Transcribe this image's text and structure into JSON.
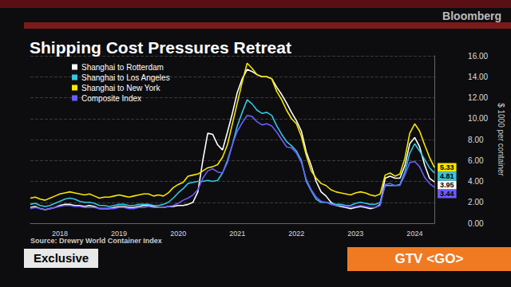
{
  "chart_data": {
    "type": "line",
    "title": "Shipping Cost Pressures Retreat",
    "ylabel": "$ 1000 per container",
    "source": "Source: Drewry World Container Index",
    "annotations": [
      "Bloomberg",
      "Exclusive",
      "GTV <GO>"
    ],
    "categories": [
      null,
      null,
      null,
      null,
      null,
      null,
      "2018",
      null,
      null,
      null,
      null,
      null,
      null,
      null,
      null,
      null,
      null,
      null,
      "2019",
      null,
      null,
      null,
      null,
      null,
      null,
      null,
      null,
      null,
      null,
      null,
      "2020",
      null,
      null,
      null,
      null,
      null,
      null,
      null,
      null,
      null,
      null,
      null,
      "2021",
      null,
      null,
      null,
      null,
      null,
      null,
      null,
      null,
      null,
      null,
      null,
      "2022",
      null,
      null,
      null,
      null,
      null,
      null,
      null,
      null,
      null,
      null,
      null,
      "2023",
      null,
      null,
      null,
      null,
      null,
      null,
      null,
      null,
      null,
      null,
      null,
      "2024",
      null,
      null,
      null,
      null
    ],
    "series": [
      {
        "name": "Shanghai to Rotterdam",
        "color": "#ffffff",
        "values": [
          1.5,
          1.6,
          1.4,
          1.3,
          1.4,
          1.5,
          1.7,
          1.8,
          1.8,
          1.7,
          1.7,
          1.6,
          1.7,
          1.6,
          1.4,
          1.4,
          1.4,
          1.5,
          1.6,
          1.6,
          1.5,
          1.5,
          1.6,
          1.7,
          1.7,
          1.6,
          1.5,
          1.5,
          1.6,
          1.6,
          1.7,
          1.7,
          1.8,
          2.0,
          3.0,
          6.0,
          8.6,
          8.5,
          7.5,
          7.0,
          8.7,
          10.5,
          12.5,
          13.8,
          14.7,
          14.5,
          14.2,
          14.0,
          14.0,
          13.8,
          13.0,
          12.3,
          11.5,
          10.6,
          9.8,
          8.8,
          6.8,
          5.5,
          4.0,
          3.0,
          2.6,
          2.0,
          1.7,
          1.6,
          1.5,
          1.4,
          1.5,
          1.6,
          1.5,
          1.4,
          1.5,
          1.8,
          4.3,
          4.5,
          4.3,
          4.3,
          5.5,
          7.6,
          8.2,
          7.3,
          5.6,
          4.3,
          3.95
        ]
      },
      {
        "name": "Shanghai to Los Angeles",
        "color": "#33c6e0",
        "values": [
          1.8,
          1.9,
          1.7,
          1.6,
          1.7,
          1.9,
          2.1,
          2.3,
          2.4,
          2.3,
          2.1,
          2.0,
          2.0,
          1.9,
          1.7,
          1.7,
          1.6,
          1.7,
          1.8,
          1.8,
          1.7,
          1.7,
          1.8,
          1.8,
          1.8,
          1.7,
          1.7,
          1.8,
          2.0,
          2.4,
          2.9,
          3.3,
          3.8,
          3.9,
          4.0,
          4.0,
          4.1,
          4.0,
          4.1,
          4.8,
          6.0,
          7.5,
          9.3,
          10.6,
          11.8,
          11.4,
          10.8,
          10.5,
          10.6,
          10.3,
          9.3,
          8.5,
          7.8,
          7.4,
          6.9,
          6.0,
          4.0,
          3.1,
          2.3,
          2.0,
          2.0,
          1.9,
          1.8,
          1.8,
          1.7,
          1.7,
          1.9,
          2.0,
          1.9,
          1.8,
          1.8,
          2.0,
          3.6,
          3.6,
          3.6,
          3.7,
          4.9,
          6.7,
          7.6,
          6.9,
          6.1,
          5.3,
          4.81
        ]
      },
      {
        "name": "Shanghai to New York",
        "color": "#f5e600",
        "values": [
          2.4,
          2.5,
          2.3,
          2.2,
          2.4,
          2.6,
          2.8,
          2.9,
          3.0,
          2.9,
          2.8,
          2.7,
          2.8,
          2.6,
          2.4,
          2.5,
          2.5,
          2.6,
          2.7,
          2.6,
          2.5,
          2.6,
          2.7,
          2.8,
          2.8,
          2.6,
          2.7,
          2.6,
          2.9,
          3.4,
          3.7,
          3.9,
          4.5,
          4.6,
          4.7,
          5.0,
          5.3,
          5.4,
          5.6,
          6.3,
          7.5,
          9.5,
          11.5,
          13.5,
          15.3,
          14.8,
          14.2,
          14.0,
          14.0,
          13.8,
          12.6,
          11.8,
          10.8,
          10.0,
          9.5,
          8.3,
          6.5,
          5.0,
          4.3,
          3.8,
          3.6,
          3.2,
          3.0,
          2.9,
          2.8,
          2.7,
          2.9,
          3.0,
          2.9,
          2.7,
          2.6,
          2.8,
          4.6,
          4.8,
          4.5,
          4.7,
          6.2,
          8.6,
          9.5,
          8.8,
          7.5,
          6.3,
          5.33
        ]
      },
      {
        "name": "Composite Index",
        "color": "#6a5cff",
        "values": [
          1.4,
          1.5,
          1.4,
          1.3,
          1.4,
          1.5,
          1.6,
          1.7,
          1.7,
          1.6,
          1.6,
          1.5,
          1.5,
          1.5,
          1.4,
          1.4,
          1.4,
          1.4,
          1.5,
          1.5,
          1.4,
          1.4,
          1.5,
          1.5,
          1.6,
          1.5,
          1.5,
          1.5,
          1.6,
          1.7,
          1.9,
          2.2,
          2.4,
          2.7,
          3.2,
          4.3,
          5.0,
          5.2,
          4.9,
          4.8,
          5.8,
          7.5,
          8.8,
          9.6,
          10.3,
          10.2,
          9.7,
          9.4,
          9.5,
          9.3,
          8.7,
          8.0,
          7.3,
          7.2,
          6.7,
          5.8,
          4.2,
          3.2,
          2.5,
          2.1,
          2.0,
          1.8,
          1.7,
          1.7,
          1.6,
          1.5,
          1.6,
          1.7,
          1.6,
          1.5,
          1.5,
          1.7,
          3.7,
          3.8,
          3.6,
          3.6,
          4.6,
          5.8,
          5.9,
          5.4,
          4.4,
          3.8,
          3.44
        ]
      }
    ],
    "ylim": [
      0,
      16
    ],
    "yticks": [
      {
        "value": 0,
        "label": "0.00"
      },
      {
        "value": 2,
        "label": "2.00"
      },
      {
        "value": 4,
        "label": "4.00"
      },
      {
        "value": 6,
        "label": "6.00"
      },
      {
        "value": 8,
        "label": "8.00"
      },
      {
        "value": 10,
        "label": "10.00"
      },
      {
        "value": 12,
        "label": "12.00"
      },
      {
        "value": 14,
        "label": "14.00"
      },
      {
        "value": 16,
        "label": "16.00"
      }
    ],
    "grid": true,
    "legend": "upper left"
  }
}
